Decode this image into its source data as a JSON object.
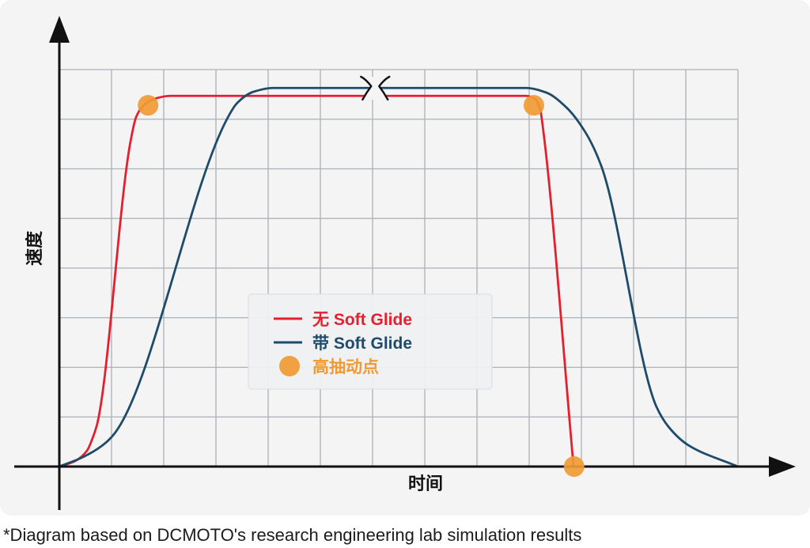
{
  "chart_data": {
    "type": "line",
    "xlabel": "时间",
    "ylabel": "速度",
    "xlim": [
      0,
      13
    ],
    "ylim": [
      0,
      8
    ],
    "grid": true,
    "axis_break_x": 6.05,
    "legend_position": "center",
    "series": [
      {
        "name": "无 Soft Glide",
        "color": "#e5202e",
        "points": [
          [
            0,
            0
          ],
          [
            0.3,
            0.11
          ],
          [
            0.53,
            0.32
          ],
          [
            0.65,
            0.61
          ],
          [
            0.73,
            0.88
          ],
          [
            1.36,
            6.53
          ],
          [
            1.47,
            7.04
          ],
          [
            1.59,
            7.25
          ],
          [
            1.82,
            7.41
          ],
          [
            2.12,
            7.47
          ],
          [
            8.94,
            7.47
          ],
          [
            9.11,
            7.41
          ],
          [
            9.21,
            7.2
          ],
          [
            9.27,
            6.77
          ],
          [
            9.85,
            0
          ]
        ]
      },
      {
        "name": "带 Soft Glide",
        "color": "#1f4b6b",
        "points": [
          [
            0,
            0
          ],
          [
            0.45,
            0.19
          ],
          [
            0.83,
            0.43
          ],
          [
            1.06,
            0.67
          ],
          [
            3.23,
            7.04
          ],
          [
            3.41,
            7.33
          ],
          [
            3.71,
            7.55
          ],
          [
            4.09,
            7.63
          ],
          [
            8.94,
            7.63
          ],
          [
            9.32,
            7.54
          ],
          [
            9.7,
            7.25
          ],
          [
            10.08,
            6.73
          ],
          [
            10.38,
            6.06
          ],
          [
            11.44,
            1.2
          ],
          [
            11.67,
            0.8
          ],
          [
            12.05,
            0.43
          ],
          [
            13,
            0
          ]
        ]
      }
    ],
    "markers": {
      "name": "高抽动点",
      "color": "#f09a33",
      "points": [
        [
          1.7,
          7.28
        ],
        [
          9.09,
          7.28
        ],
        [
          9.86,
          0
        ]
      ]
    }
  },
  "footer": {
    "note": "*Diagram based on DCMOTO's research engineering lab simulation results"
  },
  "colors": {
    "panel_background": "#f4f4f4",
    "grid": "#aab0b7",
    "axis": "#111111",
    "legend_background": "#eff0f2",
    "legend_border": "#dcdfe3"
  }
}
